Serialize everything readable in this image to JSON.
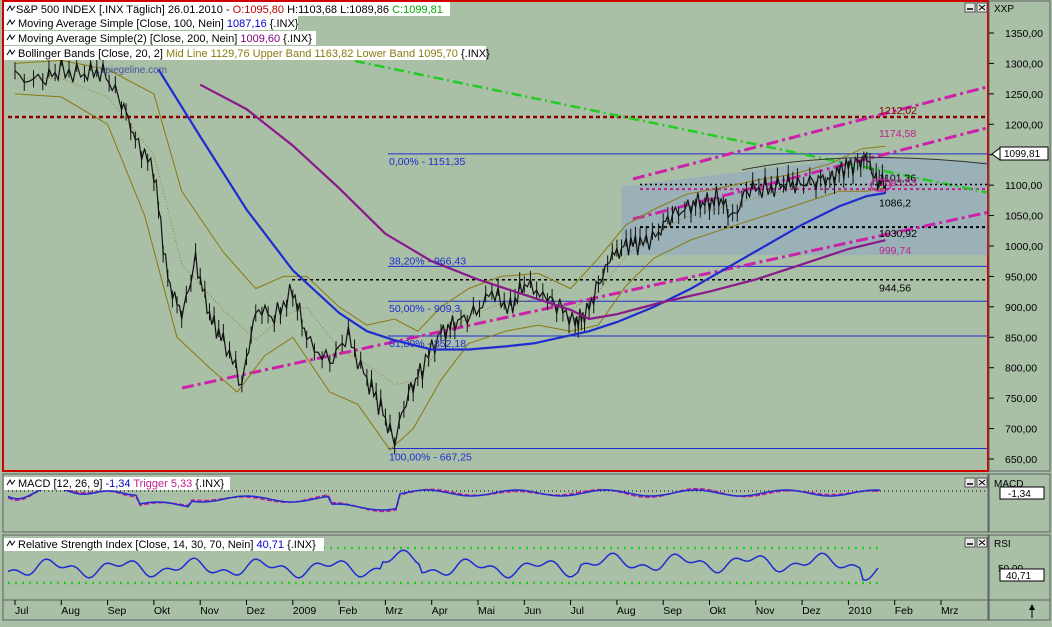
{
  "main_panel": {
    "header_lines": [
      {
        "parts": [
          {
            "text": "S&P 500 INDEX [.INX  Täglich] 26.01.2010 - ",
            "color": "#000000"
          },
          {
            "text": "O:1095,80",
            "color": "#c00000"
          },
          {
            "text": " H:1103,68 L:1089,86 ",
            "color": "#000000"
          },
          {
            "text": "C:1099,81",
            "color": "#00aa00"
          }
        ]
      },
      {
        "parts": [
          {
            "text": "Moving Average Simple [Close, 100, Nein] ",
            "color": "#000000"
          },
          {
            "text": "1087,16",
            "color": "#0000cc"
          },
          {
            "text": " {.INX}",
            "color": "#000000"
          }
        ]
      },
      {
        "parts": [
          {
            "text": "Moving Average Simple(2) [Close, 200, Nein] ",
            "color": "#000000"
          },
          {
            "text": "1009,60",
            "color": "#800080"
          },
          {
            "text": " {.INX}",
            "color": "#000000"
          }
        ]
      },
      {
        "parts": [
          {
            "text": "Bollinger Bands [Close, 20, 2] ",
            "color": "#000000"
          },
          {
            "text": "Mid Line 1129,76 Upper Band 1163,82 Lower Band 1095,70",
            "color": "#8a7a10"
          },
          {
            "text": " {.INX}",
            "color": "#000000"
          }
        ]
      }
    ],
    "axis_label": "XXP",
    "watermark": "...spiegeline.com",
    "last_price": "1099,81"
  },
  "chart_data": [
    {
      "type": "line",
      "title": "S&P 500 INDEX [.INX  Täglich] 26.01.2010",
      "x_labels": [
        "Jul",
        "Aug",
        "Sep",
        "Okt",
        "Nov",
        "Dez",
        "2009",
        "Feb",
        "Mrz",
        "Apr",
        "Mai",
        "Jun",
        "Jul",
        "Aug",
        "Sep",
        "Okt",
        "Nov",
        "Dez",
        "2010",
        "Feb",
        "Mrz"
      ],
      "y_ticks": [
        "1350,00",
        "1300,00",
        "1250,00",
        "1200,00",
        "1150,00",
        "1100,00",
        "1050,00",
        "1000,00",
        "950,00",
        "900,00",
        "850,00",
        "800,00",
        "750,00",
        "700,00",
        "650,00"
      ],
      "ylim": [
        640,
        1380
      ],
      "series": [
        {
          "name": "S&P 500 INDEX",
          "color": "#000000",
          "points": [
            [
              0,
              1280
            ],
            [
              0.6,
              1270
            ],
            [
              1.0,
              1290
            ],
            [
              1.5,
              1280
            ],
            [
              1.9,
              1290
            ],
            [
              2.3,
              1235
            ],
            [
              2.6,
              1180
            ],
            [
              3.0,
              1120
            ],
            [
              3.3,
              950
            ],
            [
              3.6,
              880
            ],
            [
              3.9,
              980
            ],
            [
              4.2,
              880
            ],
            [
              4.5,
              850
            ],
            [
              4.9,
              770
            ],
            [
              5.2,
              900
            ],
            [
              5.6,
              880
            ],
            [
              6.0,
              930
            ],
            [
              6.3,
              845
            ],
            [
              6.8,
              810
            ],
            [
              7.2,
              850
            ],
            [
              7.6,
              780
            ],
            [
              7.9,
              735
            ],
            [
              8.2,
              680
            ],
            [
              8.5,
              760
            ],
            [
              8.8,
              800
            ],
            [
              9.2,
              860
            ],
            [
              9.5,
              870
            ],
            [
              9.9,
              890
            ],
            [
              10.3,
              920
            ],
            [
              10.7,
              900
            ],
            [
              11.0,
              935
            ],
            [
              11.4,
              925
            ],
            [
              11.7,
              900
            ],
            [
              12.1,
              880
            ],
            [
              12.3,
              880
            ],
            [
              12.6,
              940
            ],
            [
              12.9,
              980
            ],
            [
              13.2,
              1005
            ],
            [
              13.5,
              1000
            ],
            [
              13.9,
              1025
            ],
            [
              14.2,
              1050
            ],
            [
              14.6,
              1070
            ],
            [
              14.9,
              1070
            ],
            [
              15.2,
              1080
            ],
            [
              15.5,
              1045
            ],
            [
              15.8,
              1090
            ],
            [
              16.2,
              1095
            ],
            [
              16.6,
              1100
            ],
            [
              16.9,
              1105
            ],
            [
              17.3,
              1105
            ],
            [
              17.6,
              1115
            ],
            [
              17.9,
              1125
            ],
            [
              18.2,
              1140
            ],
            [
              18.4,
              1140
            ],
            [
              18.6,
              1110
            ],
            [
              18.8,
              1100
            ]
          ]
        },
        {
          "name": "Moving Average Simple [Close, 100, Nein]",
          "color": "#1f2dd0",
          "points": [
            [
              3.1,
              1290
            ],
            [
              4.0,
              1180
            ],
            [
              5.0,
              1060
            ],
            [
              6.0,
              960
            ],
            [
              7.0,
              890
            ],
            [
              7.6,
              860
            ],
            [
              8.2,
              845
            ],
            [
              9.0,
              830
            ],
            [
              9.8,
              830
            ],
            [
              10.6,
              835
            ],
            [
              11.2,
              840
            ],
            [
              11.8,
              850
            ],
            [
              12.4,
              860
            ],
            [
              13.0,
              875
            ],
            [
              13.8,
              900
            ],
            [
              14.6,
              930
            ],
            [
              15.4,
              965
            ],
            [
              16.2,
              1000
            ],
            [
              17.0,
              1035
            ],
            [
              17.8,
              1065
            ],
            [
              18.4,
              1082
            ],
            [
              18.8,
              1087.16
            ]
          ]
        },
        {
          "name": "Moving Average Simple(2) [Close, 200, Nein]",
          "color": "#8a1a8a",
          "points": [
            [
              4.0,
              1265
            ],
            [
              5.0,
              1225
            ],
            [
              6.0,
              1165
            ],
            [
              7.0,
              1095
            ],
            [
              8.0,
              1020
            ],
            [
              9.0,
              975
            ],
            [
              10.0,
              945
            ],
            [
              11.0,
              920
            ],
            [
              12.0,
              895
            ],
            [
              12.4,
              880
            ],
            [
              13.0,
              888
            ],
            [
              14.0,
              908
            ],
            [
              15.0,
              925
            ],
            [
              16.0,
              945
            ],
            [
              17.0,
              970
            ],
            [
              18.0,
              995
            ],
            [
              18.8,
              1009.6
            ]
          ]
        }
      ],
      "horizontal_levels": [
        {
          "value": 1212.02,
          "label": "1212,02",
          "color": "#8b0000"
        },
        {
          "value": 1174.58,
          "label": "1174,58",
          "color": "#c0208f"
        },
        {
          "value": 1151.35,
          "label": "0,00% - 1151,35",
          "color": "#1f2dd0"
        },
        {
          "value": 1101.36,
          "label": "1101,36",
          "color": "#000000"
        },
        {
          "value": 1093.53,
          "label": "1093,53",
          "color": "#c0208f"
        },
        {
          "value": 1086.2,
          "label": "1086,2",
          "color": "#000000"
        },
        {
          "value": 1030.92,
          "label": "1030,92",
          "color": "#000000"
        },
        {
          "value": 999.74,
          "label": "999,74",
          "color": "#c0208f"
        },
        {
          "value": 966.43,
          "label": "38,20% - 966,43",
          "color": "#1f2dd0"
        },
        {
          "value": 944.56,
          "label": "944,56",
          "color": "#000000"
        },
        {
          "value": 909.3,
          "label": "50,00% - 909,3",
          "color": "#1f2dd0"
        },
        {
          "value": 852.18,
          "label": "61,80% - 852,18",
          "color": "#1f2dd0"
        },
        {
          "value": 667.25,
          "label": "100,00% - 667,25",
          "color": "#1f2dd0"
        }
      ]
    },
    {
      "type": "line",
      "title": "MACD [12, 26, 9] -1,34 Trigger 5,33 {.INX}",
      "axis_label": "MACD",
      "value_label": "-1,34",
      "series": [
        {
          "name": "MACD",
          "color": "#1f2dd0"
        },
        {
          "name": "Trigger",
          "color": "#c0208f"
        }
      ]
    },
    {
      "type": "line",
      "title": "Relative Strength Index [Close, 14, 30, 70, Nein] 40,71 {.INX}",
      "axis_label": "RSI",
      "y_ticks": [
        "50,00"
      ],
      "value_label": "40,71",
      "levels": [
        30,
        70
      ],
      "series": [
        {
          "name": "Relative Strength Index",
          "color": "#1f2dd0"
        }
      ]
    }
  ],
  "macd_panel": {
    "header_parts": [
      {
        "text": "MACD [12, 26, 9] ",
        "color": "#000000"
      },
      {
        "text": "-1,34",
        "color": "#0000cc"
      },
      {
        "text": " Trigger 5,33",
        "color": "#c0208f"
      },
      {
        "text": " {.INX}",
        "color": "#000000"
      }
    ]
  },
  "rsi_panel": {
    "header_parts": [
      {
        "text": "Relative Strength Index [Close, 14, 30, 70, Nein] ",
        "color": "#000000"
      },
      {
        "text": "40,71",
        "color": "#0000cc"
      },
      {
        "text": " {.INX}",
        "color": "#000000"
      }
    ]
  },
  "icons": {
    "minimize": "minimize-icon",
    "close": "close-icon",
    "scroll_up": "up-arrow-icon",
    "indicator": "indicator-icon"
  }
}
